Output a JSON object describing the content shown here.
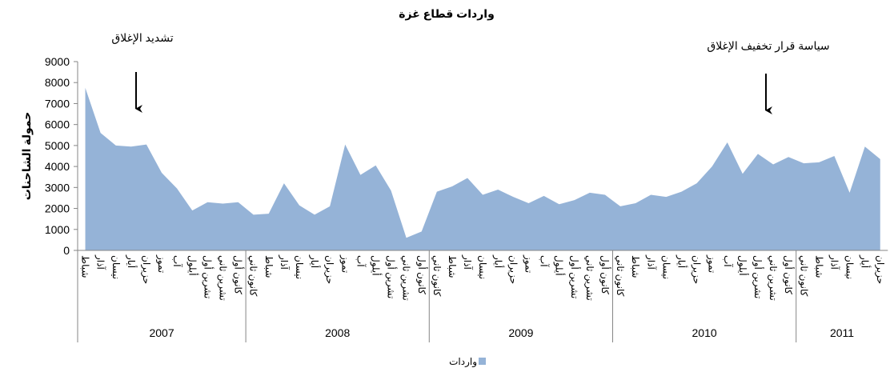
{
  "chart_data": {
    "type": "area",
    "title": "واردات قطاع غزة",
    "y_axis_label": "حمولة الشاحنات",
    "ylim": [
      0,
      9000
    ],
    "yticks": [
      0,
      1000,
      2000,
      3000,
      4000,
      5000,
      6000,
      7000,
      8000,
      9000
    ],
    "groups": [
      {
        "label": "2007",
        "categories": [
          "شباط",
          "آذار",
          "نيسان",
          "أيار",
          "حزيران",
          "تموز",
          "آب",
          "أيلول",
          "تشرين أول",
          "تشرين ثاني",
          "كانون أول"
        ]
      },
      {
        "label": "2008",
        "categories": [
          "كانون ثاني",
          "شباط",
          "آذار",
          "نيسان",
          "أيار",
          "حزيران",
          "تموز",
          "آب",
          "أيلول",
          "تشرين أول",
          "تشرين ثاني",
          "كانون أول"
        ]
      },
      {
        "label": "2009",
        "categories": [
          "كانون ثاني",
          "شباط",
          "آذار",
          "نيسان",
          "أيار",
          "حزيران",
          "تموز",
          "آب",
          "أيلول",
          "تشرين أول",
          "تشرين ثاني",
          "كانون أول"
        ]
      },
      {
        "label": "2010",
        "categories": [
          "كانون ثاني",
          "شباط",
          "آذار",
          "نيسان",
          "أيار",
          "حزيران",
          "تموز",
          "آب",
          "أيلول",
          "تشرين أول",
          "تشرين ثاني",
          "كانون أول"
        ]
      },
      {
        "label": "2011",
        "categories": [
          "كانون ثاني",
          "شباط",
          "آذار",
          "نيسان",
          "أيار",
          "حزيران"
        ]
      }
    ],
    "series": [
      {
        "name": "واردات",
        "color": "#95b3d7",
        "values": [
          7750,
          5600,
          5000,
          4950,
          5050,
          3700,
          2950,
          1900,
          2300,
          2230,
          2300,
          1700,
          1750,
          3200,
          2150,
          1700,
          2100,
          5050,
          3600,
          4050,
          2850,
          600,
          900,
          2800,
          3050,
          3450,
          2650,
          2900,
          2550,
          2250,
          2600,
          2200,
          2400,
          2750,
          2650,
          2100,
          2250,
          2650,
          2550,
          2800,
          3200,
          4000,
          5150,
          3650,
          4600,
          4100,
          4450,
          4150,
          4200,
          4500,
          2750,
          4950,
          4350
        ]
      }
    ],
    "annotations": [
      "تشديد الإغلاق",
      "سياسة قرار تخفيف الإغلاق"
    ],
    "legend": "bottom"
  }
}
